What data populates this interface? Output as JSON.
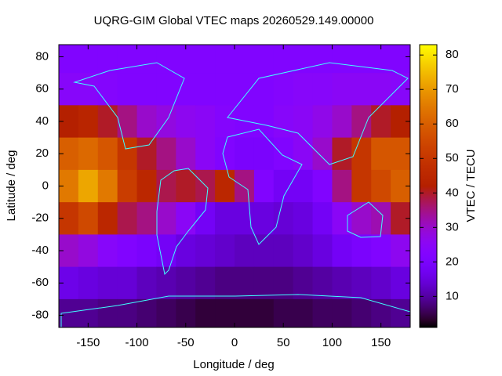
{
  "chart_data": {
    "type": "heatmap",
    "title": "UQRG-GIM Global VTEC maps 20260529.149.00000",
    "x_label": "Longitude / deg",
    "y_label": "Latitude / deg",
    "colorbar_label": "VTEC / TECU",
    "x": [
      -170,
      -150,
      -130,
      -110,
      -90,
      -70,
      -50,
      -30,
      -10,
      10,
      30,
      50,
      70,
      90,
      110,
      130,
      150,
      170
    ],
    "y": [
      80,
      60,
      40,
      20,
      0,
      -20,
      -40,
      -60,
      -80
    ],
    "values": [
      [
        22,
        22,
        22,
        22,
        22,
        22,
        22,
        22,
        22,
        22,
        22,
        22,
        22,
        22,
        22,
        22,
        22,
        22
      ],
      [
        24,
        24,
        23,
        22,
        22,
        22,
        22,
        22,
        22,
        22,
        22,
        23,
        24,
        24,
        25,
        25,
        25,
        24
      ],
      [
        42,
        44,
        40,
        35,
        30,
        28,
        26,
        25,
        23,
        22,
        22,
        24,
        25,
        27,
        30,
        35,
        40,
        42
      ],
      [
        60,
        62,
        58,
        50,
        40,
        35,
        30,
        25,
        22,
        20,
        20,
        22,
        25,
        30,
        40,
        50,
        58,
        58
      ],
      [
        65,
        72,
        65,
        52,
        45,
        38,
        40,
        38,
        45,
        35,
        22,
        18,
        18,
        22,
        35,
        50,
        55,
        60
      ],
      [
        50,
        55,
        45,
        38,
        35,
        30,
        25,
        18,
        15,
        15,
        15,
        14,
        15,
        18,
        25,
        30,
        32,
        40
      ],
      [
        30,
        28,
        24,
        22,
        20,
        18,
        15,
        14,
        13,
        12,
        12,
        12,
        13,
        15,
        18,
        20,
        22,
        26
      ],
      [
        16,
        15,
        14,
        14,
        12,
        11,
        10,
        9,
        8,
        8,
        8,
        8,
        9,
        10,
        11,
        12,
        13,
        15
      ],
      [
        9,
        9,
        8,
        8,
        7,
        6,
        5,
        4,
        4,
        4,
        4,
        5,
        5,
        6,
        6,
        7,
        8,
        9
      ]
    ],
    "xlim": [
      -180,
      180
    ],
    "ylim": [
      -87.5,
      87.5
    ],
    "xticks": [
      -150,
      -100,
      -50,
      0,
      50,
      100,
      150
    ],
    "yticks": [
      -80,
      -60,
      -40,
      -20,
      0,
      20,
      40,
      60,
      80
    ],
    "cblim": [
      1,
      83
    ],
    "cbticks": [
      10,
      20,
      30,
      40,
      50,
      60,
      70,
      80
    ]
  }
}
